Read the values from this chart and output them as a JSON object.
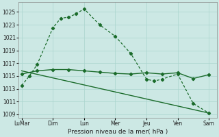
{
  "xlabel": "Pression niveau de la mer( hPa )",
  "bg_color": "#cce8e4",
  "grid_color": "#aad4ce",
  "line_color": "#1a6b2a",
  "x_labels": [
    "LuMar",
    "Dim",
    "Lun",
    "Mer",
    "Jeu",
    "Ven",
    "Sam"
  ],
  "x_ticks": [
    0,
    2,
    4,
    6,
    8,
    10,
    12
  ],
  "ylim": [
    1008.5,
    1026.5
  ],
  "yticks": [
    1009,
    1011,
    1013,
    1015,
    1017,
    1019,
    1021,
    1023,
    1025
  ],
  "line1_x": [
    0,
    0.5,
    1,
    2,
    2.5,
    3,
    3.5,
    4,
    5,
    6,
    7,
    8,
    8.5,
    9,
    10,
    11,
    12
  ],
  "line1_y": [
    1013.5,
    1015.0,
    1016.8,
    1022.5,
    1024.0,
    1024.2,
    1024.7,
    1025.5,
    1023.0,
    1021.2,
    1018.5,
    1014.5,
    1014.2,
    1014.5,
    1015.3,
    1010.7,
    1009.2
  ],
  "line2_x": [
    0,
    1,
    2,
    3,
    4,
    5,
    6,
    7,
    8,
    9,
    10,
    11,
    12
  ],
  "line2_y": [
    1015.3,
    1015.8,
    1016.0,
    1016.0,
    1015.8,
    1015.6,
    1015.4,
    1015.3,
    1015.5,
    1015.3,
    1015.5,
    1014.6,
    1015.2
  ],
  "line3_x": [
    0,
    12
  ],
  "line3_y": [
    1015.8,
    1009.2
  ]
}
